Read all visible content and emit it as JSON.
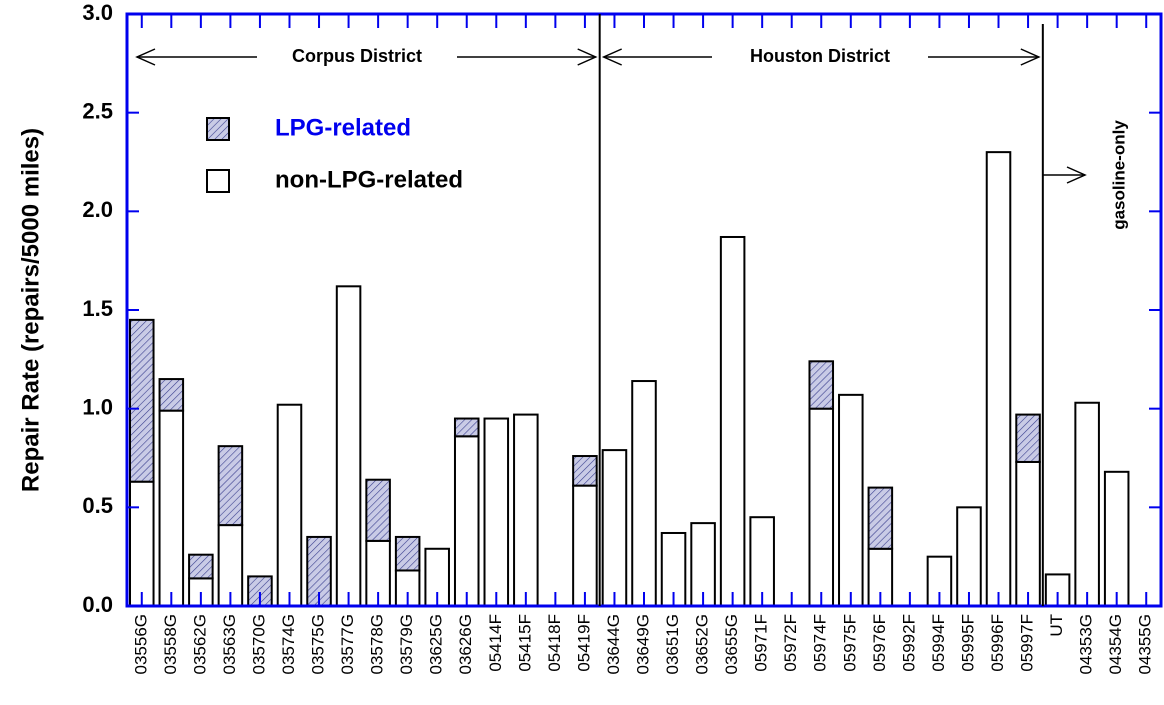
{
  "chart_data": {
    "type": "stacked_bar",
    "y_label": "Repair Rate (repairs/5000 miles)",
    "annotations": [
      "Corpus District",
      "Houston District",
      "gasoline-only"
    ],
    "categories": [
      "03556G",
      "03558G",
      "03562G",
      "03563G",
      "03570G",
      "03574G",
      "03575G",
      "03577G",
      "03578G",
      "03579G",
      "03625G",
      "03626G",
      "05414F",
      "05415F",
      "05418F",
      "05419F",
      "03644G",
      "03649G",
      "03651G",
      "03652G",
      "03655G",
      "05971F",
      "05972F",
      "05974F",
      "05975F",
      "05976F",
      "05992F",
      "05994F",
      "05995F",
      "05996F",
      "05997F",
      "UT",
      "04353G",
      "04354G",
      "04355G"
    ],
    "series": [
      {
        "name": "non-LPG-related",
        "color": "#ffffff",
        "values": [
          0.63,
          0.99,
          0.14,
          0.41,
          0,
          1.02,
          0,
          1.62,
          0.33,
          0.18,
          0.29,
          0.86,
          0.95,
          0.97,
          0,
          0.61,
          0.79,
          1.14,
          0.37,
          0.42,
          1.87,
          0.45,
          0,
          1.0,
          1.07,
          0.29,
          0,
          0.25,
          0.5,
          2.3,
          0.73,
          0.16,
          1.03,
          0.68,
          0
        ]
      },
      {
        "name": "LPG-related",
        "color": "#3a3f8f",
        "values": [
          0.82,
          0.16,
          0.12,
          0.4,
          0.15,
          0,
          0.35,
          0,
          0.31,
          0.17,
          0,
          0.09,
          0,
          0,
          0,
          0.15,
          0,
          0,
          0,
          0,
          0,
          0,
          0,
          0.24,
          0,
          0.31,
          0,
          0,
          0,
          0,
          0.24,
          0,
          0,
          0,
          0
        ]
      }
    ],
    "ylim": [
      0,
      3.0
    ],
    "yticks": [
      {
        "value": 0,
        "label": "0.0"
      },
      0.5,
      {
        "value": 1,
        "label": "1.0"
      },
      1.5,
      {
        "value": 2,
        "label": "2.0"
      },
      2.5,
      {
        "value": 3,
        "label": "3.0"
      }
    ],
    "grid": false,
    "legend": "upper left"
  }
}
